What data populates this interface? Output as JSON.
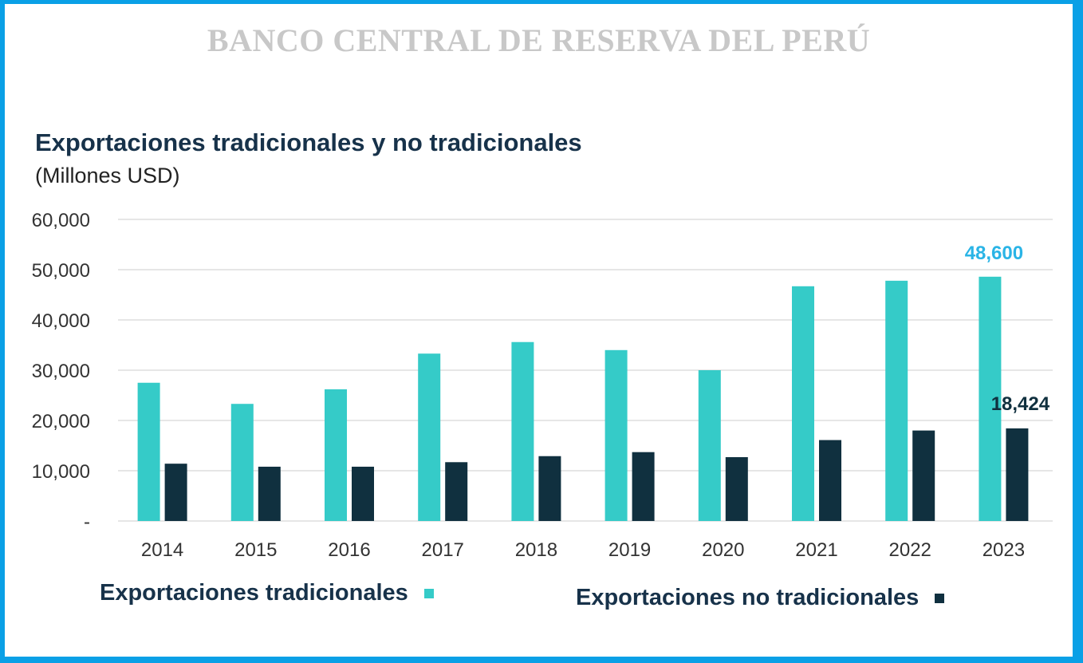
{
  "header": {
    "banner": "BANCO CENTRAL DE RESERVA DEL PERÚ"
  },
  "colors": {
    "border": "#0aa0e6",
    "tradicionales": "#35cbc8",
    "no_tradicionales": "#10303f",
    "label_highlight": "#2ab4e6",
    "gridline": "#dddddd"
  },
  "chart_data": {
    "type": "bar",
    "title": "Exportaciones tradicionales y no tradicionales",
    "subtitle": "(Millones USD)",
    "xlabel": "",
    "ylabel": "",
    "ylim": [
      0,
      60000
    ],
    "yticks": [
      0,
      10000,
      20000,
      30000,
      40000,
      50000,
      60000
    ],
    "ytick_labels": [
      "-",
      "10,000",
      "20,000",
      "30,000",
      "40,000",
      "50,000",
      "60,000"
    ],
    "grid": true,
    "legend_position": "bottom",
    "categories": [
      "2014",
      "2015",
      "2016",
      "2017",
      "2018",
      "2019",
      "2020",
      "2021",
      "2022",
      "2023"
    ],
    "series": [
      {
        "name": "Exportaciones tradicionales",
        "values": [
          27500,
          23300,
          26200,
          33300,
          35600,
          34000,
          30000,
          46700,
          47800,
          48600
        ]
      },
      {
        "name": "Exportaciones no tradicionales",
        "values": [
          11400,
          10800,
          10800,
          11700,
          12900,
          13700,
          12700,
          16100,
          18000,
          18424
        ]
      }
    ],
    "annotations": [
      {
        "series": 0,
        "category": "2023",
        "text": "48,600"
      },
      {
        "series": 1,
        "category": "2023",
        "text": "18,424"
      }
    ]
  }
}
